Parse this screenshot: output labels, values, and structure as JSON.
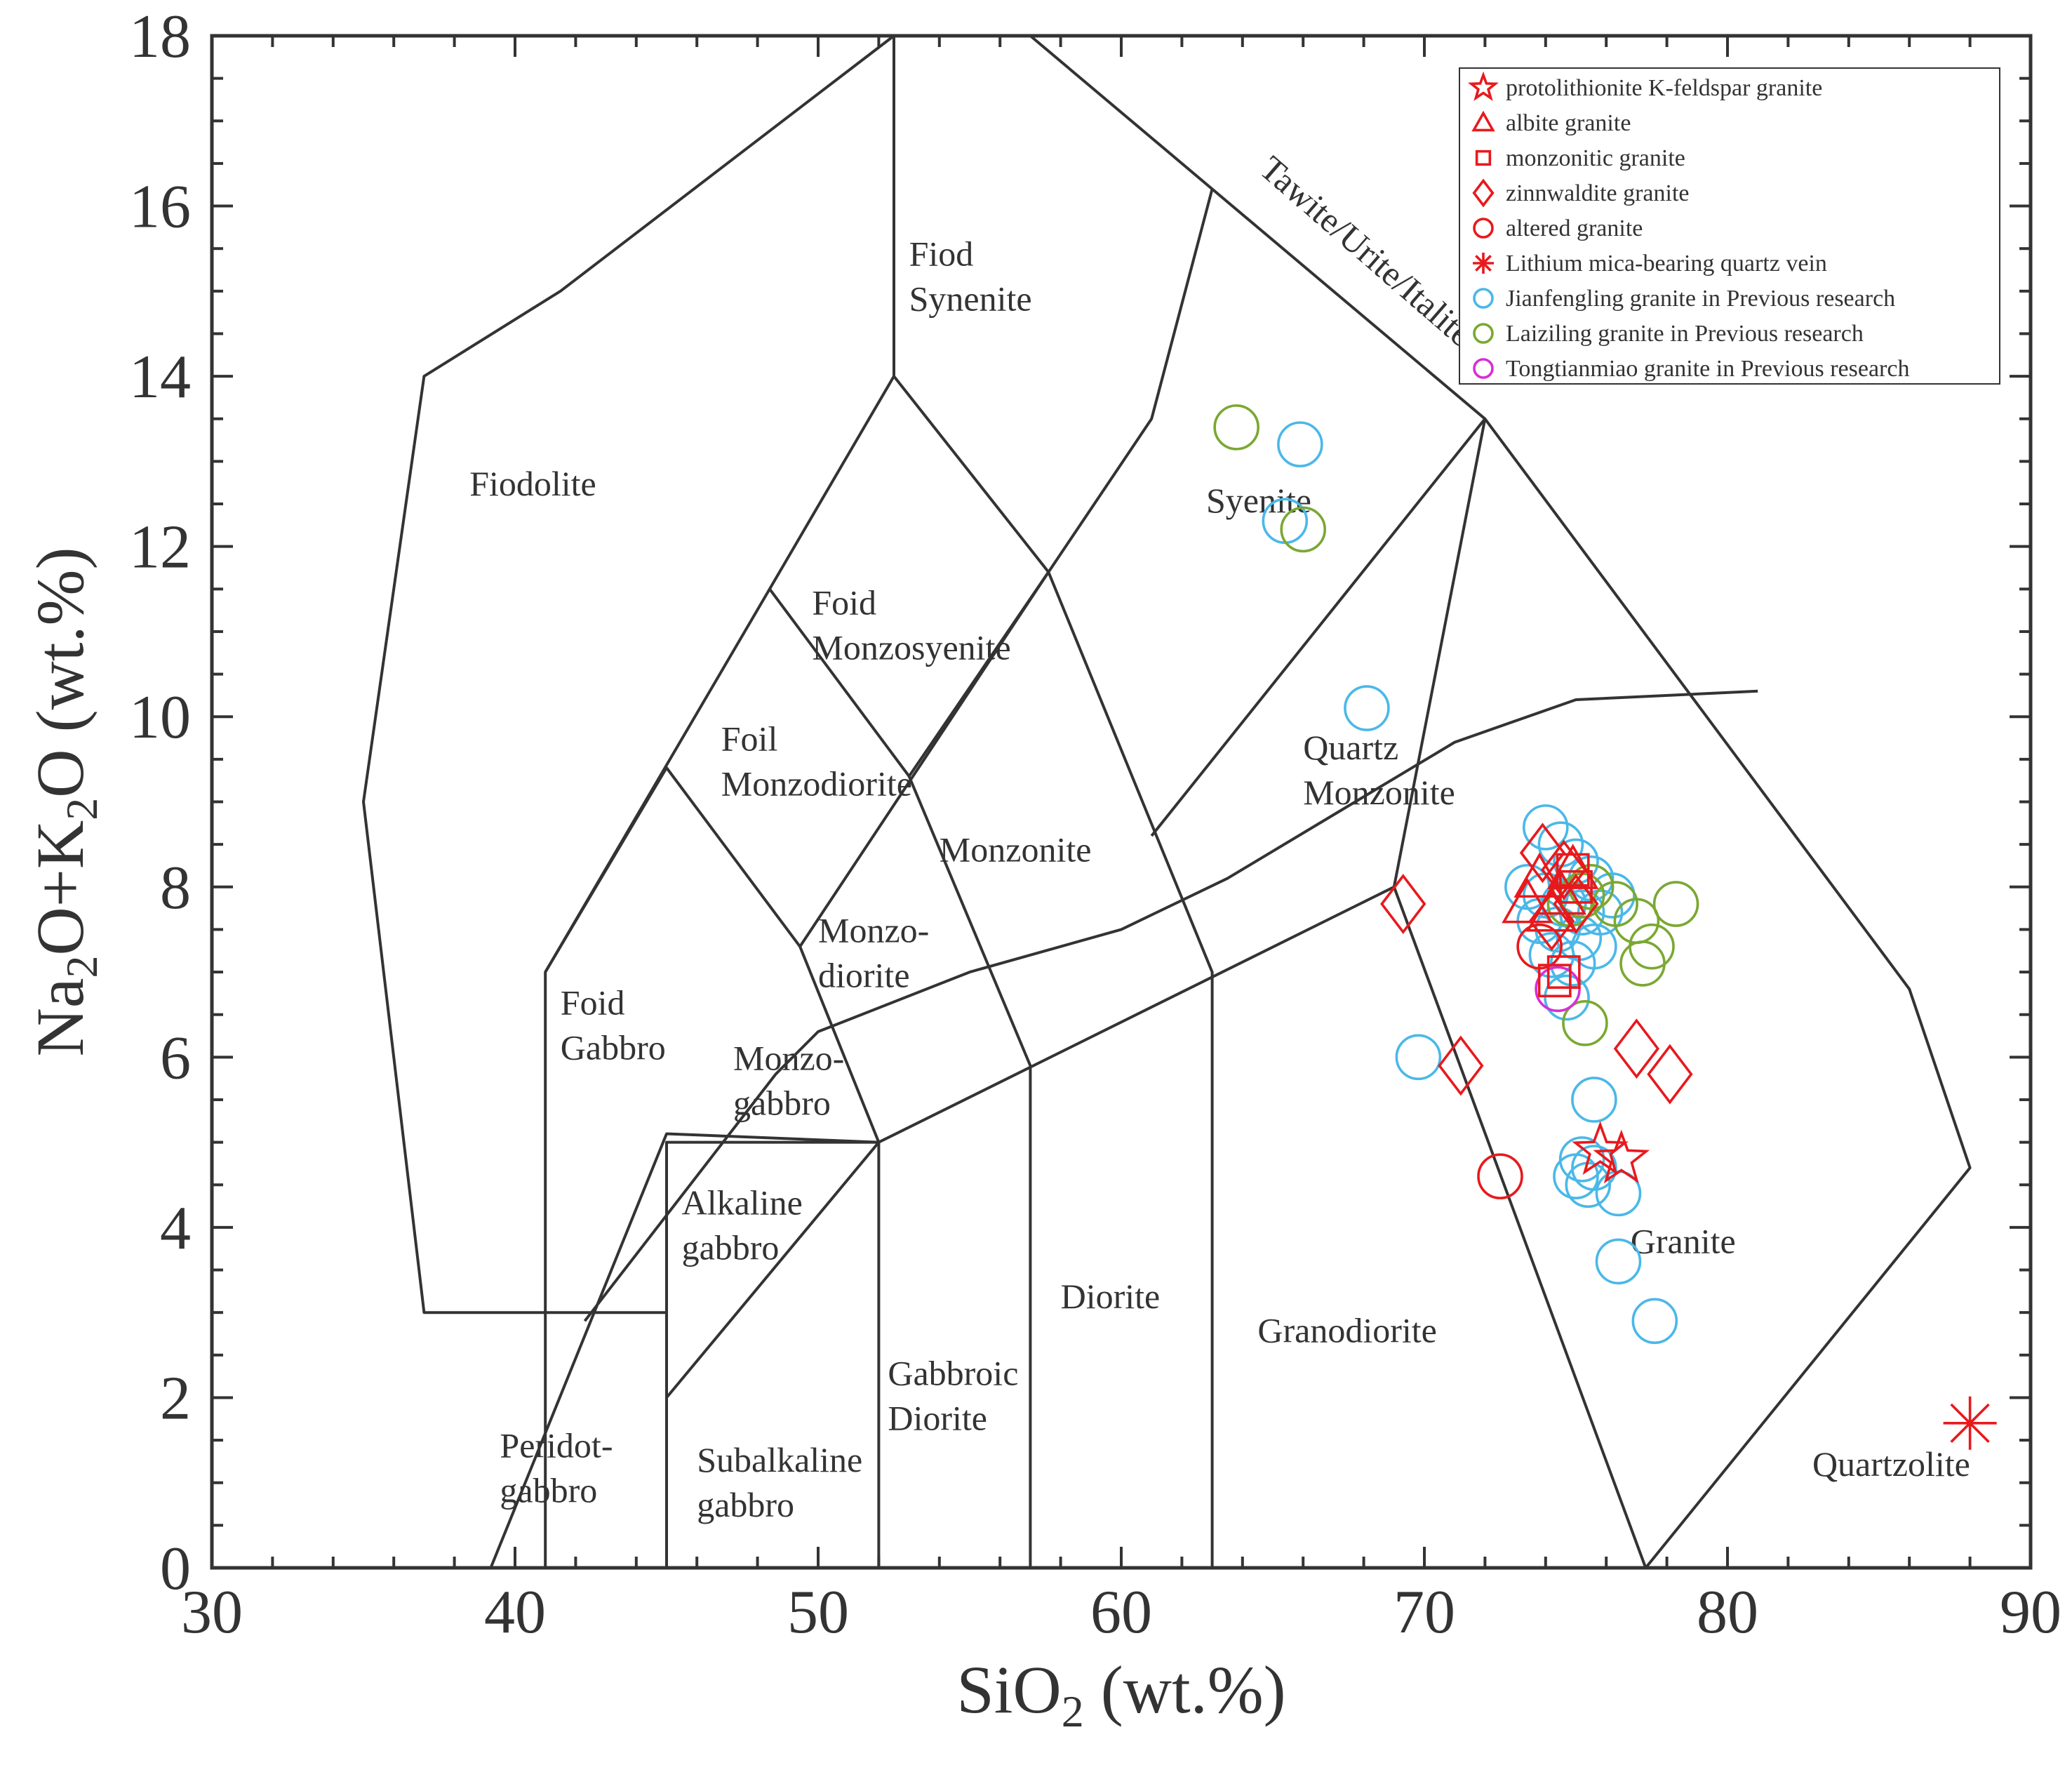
{
  "chart_data": {
    "type": "scatter",
    "title": "",
    "xlabel": {
      "main": "SiO",
      "sub": "2",
      "tail": " (wt.%)"
    },
    "ylabel": {
      "p1": "Na",
      "s1": "2",
      "p2": "O+K",
      "s2": "2",
      "p3": "O (wt.%)"
    },
    "xlim": [
      30,
      90
    ],
    "ylim": [
      0,
      18
    ],
    "xticks": [
      30,
      40,
      50,
      60,
      70,
      80,
      90
    ],
    "yticks": [
      0,
      2,
      4,
      6,
      8,
      10,
      12,
      14,
      16,
      18
    ],
    "legend_position": "top-right",
    "field_labels": [
      {
        "lines": [
          "Fiodolite"
        ],
        "x": 38.5,
        "y": 12.6
      },
      {
        "lines": [
          "Fiod",
          "Synenite"
        ],
        "x": 53.0,
        "y": 15.3
      },
      {
        "lines": [
          "Syenite"
        ],
        "x": 62.8,
        "y": 12.4
      },
      {
        "lines": [
          "Foid",
          "Monzosyenite"
        ],
        "x": 49.8,
        "y": 11.2
      },
      {
        "lines": [
          "Foil",
          "Monzodiorite"
        ],
        "x": 46.8,
        "y": 9.6
      },
      {
        "lines": [
          "Monzonite"
        ],
        "x": 54.0,
        "y": 8.3
      },
      {
        "lines": [
          "Monzo-",
          "diorite"
        ],
        "x": 50.0,
        "y": 7.35
      },
      {
        "lines": [
          "Foid",
          "Gabbro"
        ],
        "x": 41.5,
        "y": 6.5
      },
      {
        "lines": [
          "Monzo-",
          "gabbro"
        ],
        "x": 47.2,
        "y": 5.85
      },
      {
        "lines": [
          "Alkaline",
          "gabbro"
        ],
        "x": 45.5,
        "y": 4.15
      },
      {
        "lines": [
          "Diorite"
        ],
        "x": 58.0,
        "y": 3.05
      },
      {
        "lines": [
          "Granodiorite"
        ],
        "x": 64.5,
        "y": 2.65
      },
      {
        "lines": [
          "Gabbroic",
          "Diorite"
        ],
        "x": 52.3,
        "y": 2.15
      },
      {
        "lines": [
          "Peridot-",
          "gabbro"
        ],
        "x": 39.5,
        "y": 1.3
      },
      {
        "lines": [
          "Subalkaline",
          "gabbro"
        ],
        "x": 46.0,
        "y": 1.13
      },
      {
        "lines": [
          "Quartz",
          "Monzonite"
        ],
        "x": 66.0,
        "y": 9.5
      },
      {
        "lines": [
          "Granite"
        ],
        "x": 76.8,
        "y": 3.7
      },
      {
        "lines": [
          "Quartzolite"
        ],
        "x": 82.8,
        "y": 1.08
      }
    ],
    "rotated_label": {
      "text": "Tawite/Urite/Italite",
      "x": 64.5,
      "y": 16.4,
      "angle": 41
    },
    "fields": [
      [
        [
          52.5,
          18
        ],
        [
          52.5,
          14
        ],
        [
          57.6,
          11.7
        ],
        [
          61,
          13.5
        ],
        [
          63,
          16.2
        ]
      ],
      [
        [
          52.5,
          18
        ],
        [
          41.5,
          15
        ],
        [
          37,
          14
        ],
        [
          35,
          9
        ],
        [
          37,
          3
        ],
        [
          45,
          3
        ]
      ],
      [
        [
          52.5,
          14
        ],
        [
          48.4,
          11.5
        ],
        [
          53,
          9.3
        ],
        [
          57.6,
          11.7
        ]
      ],
      [
        [
          48.4,
          11.5
        ],
        [
          41,
          7
        ],
        [
          41,
          0
        ]
      ],
      [
        [
          41,
          7
        ],
        [
          45,
          9.4
        ],
        [
          49.4,
          7.3
        ],
        [
          52,
          5
        ],
        [
          45,
          5
        ],
        [
          45,
          0
        ]
      ],
      [
        [
          53,
          9.3
        ],
        [
          57,
          5.9
        ],
        [
          57,
          0
        ]
      ],
      [
        [
          57.6,
          11.7
        ],
        [
          63,
          7
        ],
        [
          63,
          0
        ]
      ],
      [
        [
          49.4,
          7.3
        ],
        [
          57.6,
          11.7
        ]
      ],
      [
        [
          52,
          5
        ],
        [
          52,
          0
        ]
      ],
      [
        [
          61,
          8.6
        ],
        [
          72,
          13.5
        ],
        [
          57,
          18
        ],
        [
          72,
          13.5
        ],
        [
          69,
          8
        ]
      ],
      [
        [
          69,
          8
        ],
        [
          77.3,
          0
        ],
        [
          88,
          4.7
        ],
        [
          86,
          6.8
        ],
        [
          72,
          13.5
        ]
      ],
      [
        [
          39.2,
          0
        ],
        [
          45,
          5.1
        ],
        [
          52,
          5
        ],
        [
          69,
          8
        ]
      ],
      [
        [
          45,
          2.0
        ],
        [
          52,
          5
        ]
      ],
      [
        [
          42.3,
          2.9
        ],
        [
          48.6,
          5.8
        ],
        [
          50,
          6.3
        ],
        [
          55,
          7.0
        ],
        [
          60,
          7.5
        ],
        [
          63.5,
          8.1
        ],
        [
          71,
          9.7
        ],
        [
          75,
          10.2
        ],
        [
          81,
          10.3
        ]
      ]
    ],
    "series": [
      {
        "name": "protolithionite K-feldspar granite",
        "marker": "star",
        "color": "#e8191d",
        "points": [
          [
            75.8,
            4.9
          ],
          [
            76.5,
            4.8
          ]
        ]
      },
      {
        "name": "albite granite",
        "marker": "triangle",
        "color": "#e8191d",
        "points": [
          [
            73.4,
            7.8
          ],
          [
            73.8,
            8.1
          ],
          [
            74.5,
            7.9
          ],
          [
            74.2,
            7.7
          ],
          [
            74.9,
            8.2
          ]
        ]
      },
      {
        "name": "monzonitic granite",
        "marker": "square",
        "color": "#e8191d",
        "points": [
          [
            74.3,
            6.9
          ],
          [
            74.6,
            7.0
          ],
          [
            75.0,
            8.0
          ],
          [
            74.9,
            8.2
          ]
        ]
      },
      {
        "name": "zinnwaldite granite",
        "marker": "diamond",
        "color": "#e8191d",
        "points": [
          [
            73.9,
            8.4
          ],
          [
            74.2,
            7.6
          ],
          [
            74.6,
            8.2
          ],
          [
            75.0,
            7.8
          ],
          [
            69.3,
            7.8
          ],
          [
            71.2,
            5.9
          ],
          [
            77.0,
            6.1
          ],
          [
            78.1,
            5.8
          ]
        ]
      },
      {
        "name": "altered granite",
        "marker": "circle",
        "color": "#e8191d",
        "points": [
          [
            73.8,
            7.3
          ],
          [
            72.5,
            4.6
          ]
        ]
      },
      {
        "name": "Lithium mica-bearing quartz vein",
        "marker": "asterisk",
        "color": "#e8191d",
        "points": [
          [
            88.0,
            1.7
          ]
        ]
      },
      {
        "name": "Jianfengling granite in Previous research",
        "marker": "circle",
        "color": "#4ab8e8",
        "points": [
          [
            65.9,
            13.2
          ],
          [
            65.4,
            12.3
          ],
          [
            68.1,
            10.1
          ],
          [
            74.0,
            8.7
          ],
          [
            74.5,
            8.5
          ],
          [
            75.0,
            8.3
          ],
          [
            75.5,
            8.1
          ],
          [
            73.4,
            8.0
          ],
          [
            74.0,
            7.9
          ],
          [
            74.6,
            7.8
          ],
          [
            75.2,
            7.7
          ],
          [
            75.8,
            7.7
          ],
          [
            73.8,
            7.6
          ],
          [
            74.4,
            7.5
          ],
          [
            75.1,
            7.4
          ],
          [
            74.2,
            7.2
          ],
          [
            74.9,
            7.1
          ],
          [
            75.6,
            7.3
          ],
          [
            74.7,
            6.7
          ],
          [
            69.8,
            6.0
          ],
          [
            75.6,
            5.5
          ],
          [
            75.2,
            4.8
          ],
          [
            75.6,
            4.7
          ],
          [
            75.0,
            4.6
          ],
          [
            75.4,
            4.5
          ],
          [
            76.4,
            4.4
          ],
          [
            76.4,
            3.6
          ],
          [
            77.6,
            2.9
          ],
          [
            76.2,
            7.9
          ]
        ]
      },
      {
        "name": "Laiziling granite in Previous research",
        "marker": "circle",
        "color": "#7aa832",
        "points": [
          [
            63.8,
            13.4
          ],
          [
            66.0,
            12.2
          ],
          [
            76.3,
            7.8
          ],
          [
            77.0,
            7.6
          ],
          [
            78.3,
            7.8
          ],
          [
            77.5,
            7.3
          ],
          [
            77.2,
            7.1
          ],
          [
            75.2,
            7.9
          ],
          [
            75.5,
            8.0
          ],
          [
            75.3,
            6.4
          ],
          [
            74.8,
            7.8
          ]
        ]
      },
      {
        "name": "Tongtianmiao granite in Previous research",
        "marker": "circle",
        "color": "#d62fd6",
        "points": [
          [
            74.4,
            6.8
          ]
        ]
      }
    ]
  }
}
